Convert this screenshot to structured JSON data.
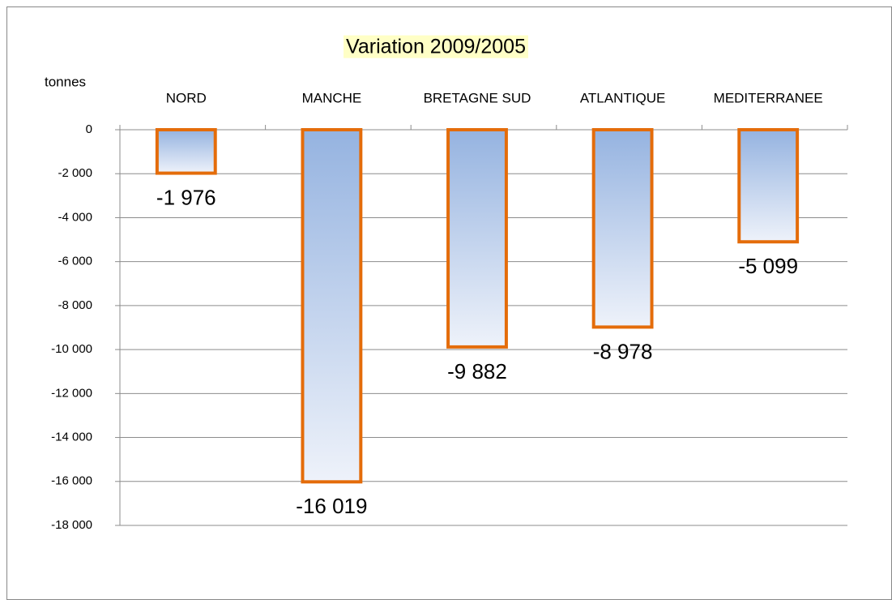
{
  "chart_data": {
    "type": "bar",
    "title": "Variation 2009/2005",
    "y_axis_label": "tonnes",
    "categories": [
      "NORD",
      "MANCHE",
      "BRETAGNE SUD",
      "ATLANTIQUE",
      "MEDITERRANEE"
    ],
    "values": [
      -1976,
      -16019,
      -9882,
      -8978,
      -5099
    ],
    "value_labels": [
      "-1 976",
      "-16 019",
      "-9 882",
      "-8 978",
      "-5 099"
    ],
    "color": "#95b3e0",
    "edge_color": "#e46c0a",
    "ylim": [
      -18000,
      0
    ],
    "yticks": [
      {
        "value": 0,
        "label": "0"
      },
      {
        "value": -2000,
        "label": "-2 000"
      },
      {
        "value": -4000,
        "label": "-4 000"
      },
      {
        "value": -6000,
        "label": "-6 000"
      },
      {
        "value": -8000,
        "label": "-8 000"
      },
      {
        "value": -10000,
        "label": "-10 000"
      },
      {
        "value": -12000,
        "label": "-12 000"
      },
      {
        "value": -14000,
        "label": "-14 000"
      },
      {
        "value": -16000,
        "label": "-16 000"
      },
      {
        "value": -18000,
        "label": "-18 000"
      }
    ],
    "grid": true,
    "title_highlight": "#ffffc6"
  }
}
